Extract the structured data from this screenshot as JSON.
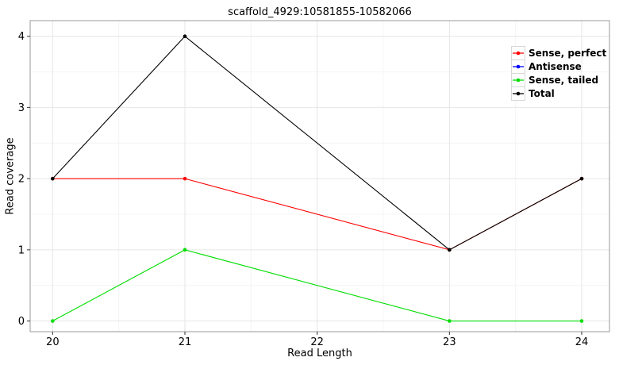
{
  "chart_data": {
    "type": "line",
    "title": "scaffold_4929:10581855-10582066",
    "xlabel": "Read Length",
    "ylabel": "Read coverage",
    "x": [
      20,
      21,
      23,
      24
    ],
    "x_ticks": [
      20,
      21,
      22,
      23,
      24
    ],
    "y_ticks": [
      0,
      1,
      2,
      3,
      4
    ],
    "xlim": [
      19.83,
      24.21
    ],
    "ylim": [
      -0.15,
      4.22
    ],
    "grid": {
      "major": true,
      "minor": true
    },
    "legend_position": "top-right-inside",
    "series": [
      {
        "name": "Sense, perfect",
        "color": "#FF0000",
        "values": [
          2,
          2,
          1,
          2
        ]
      },
      {
        "name": "Antisense",
        "color": "#0000FF",
        "values": null
      },
      {
        "name": "Sense, tailed",
        "color": "#00DD00",
        "values": [
          0,
          1,
          0,
          0
        ]
      },
      {
        "name": "Total",
        "color": "#000000",
        "values": [
          2,
          4,
          1,
          2
        ]
      }
    ],
    "colors": {
      "figure_background": "#FFFFFF",
      "panel_background": "#FFFFFF",
      "grid_major": "#E6E6E6",
      "grid_minor": "#F4F4F4",
      "panel_border": "#989898",
      "tick": "#333333",
      "text": "#000000",
      "legend_key_border": "#D8D8D8"
    }
  }
}
